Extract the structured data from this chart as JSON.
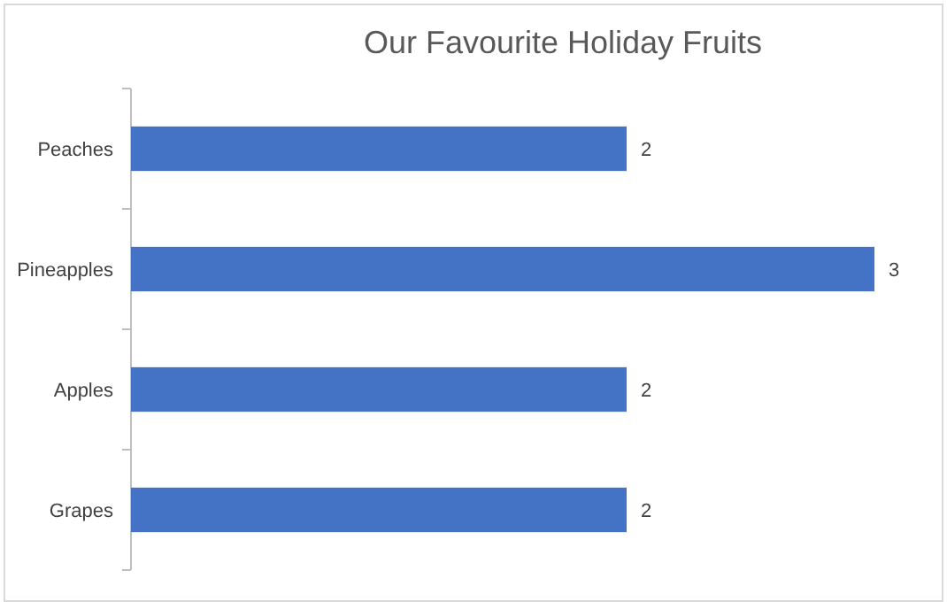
{
  "chart_data": {
    "type": "bar",
    "orientation": "horizontal",
    "title": "Our Favourite Holiday Fruits",
    "categories": [
      "Peaches",
      "Pineapples",
      "Apples",
      "Grapes"
    ],
    "values": [
      2,
      3,
      2,
      2
    ],
    "color": "#4472c4",
    "data_labels": true
  }
}
